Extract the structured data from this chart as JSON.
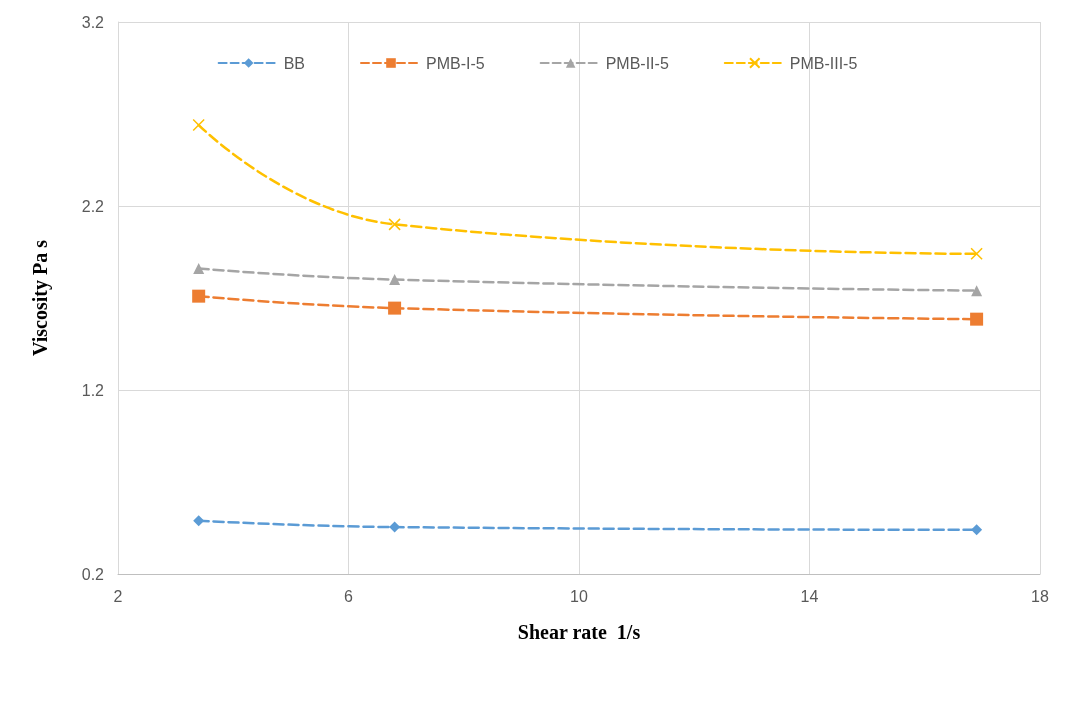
{
  "chart_data": {
    "type": "line",
    "xlabel": "Shear rate  1/s",
    "ylabel": "Viscosity Pa s",
    "x": [
      3.4,
      6.8,
      16.9
    ],
    "series": [
      {
        "name": "BB",
        "color": "#5b9bd5",
        "marker": "diamond",
        "values": [
          0.49,
          0.455,
          0.44
        ]
      },
      {
        "name": "PMB-I-5",
        "color": "#ed7d31",
        "marker": "square",
        "values": [
          1.71,
          1.645,
          1.585
        ]
      },
      {
        "name": "PMB-II-5",
        "color": "#a5a5a5",
        "marker": "triangle",
        "values": [
          1.86,
          1.8,
          1.74
        ]
      },
      {
        "name": "PMB-III-5",
        "color": "#ffc000",
        "marker": "cross",
        "values": [
          2.64,
          2.1,
          1.94
        ]
      }
    ],
    "xlim": [
      2,
      18
    ],
    "xticks": [
      2,
      6,
      10,
      14,
      18
    ],
    "ylim": [
      0.2,
      3.2
    ],
    "yticks": [
      0.2,
      1.2,
      2.2,
      3.2
    ],
    "grid": true,
    "legend": "top",
    "line_style": "dashed"
  }
}
